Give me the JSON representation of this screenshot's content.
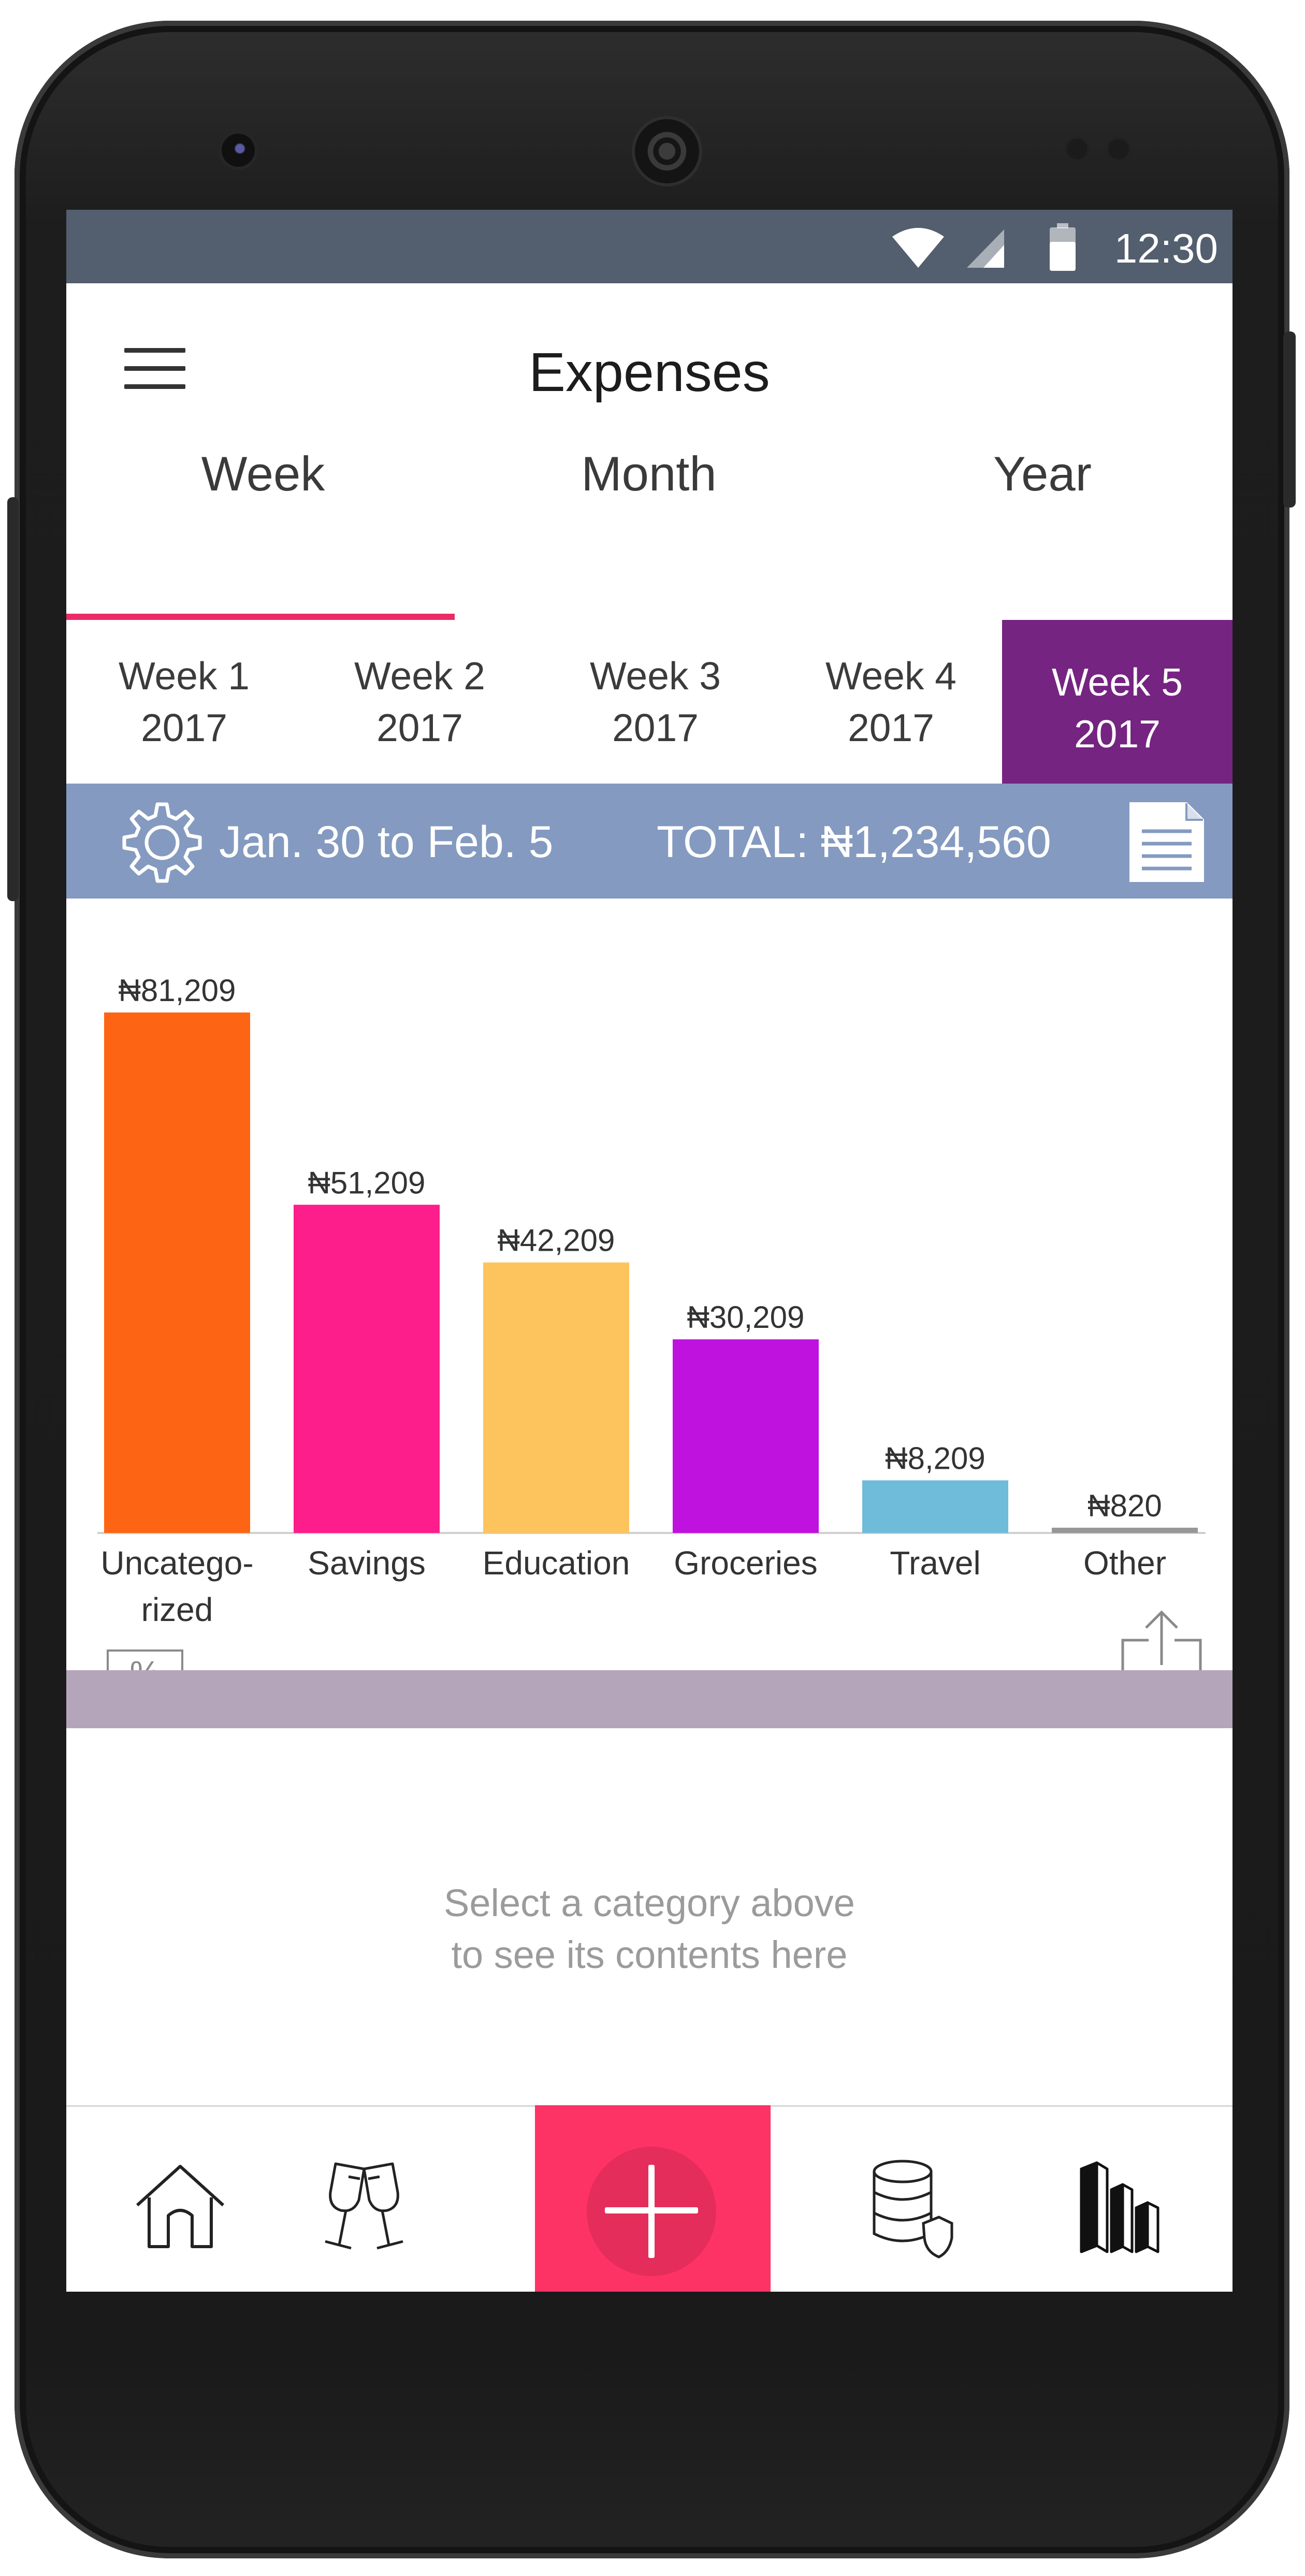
{
  "status_bar": {
    "time": "12:30"
  },
  "app_bar": {
    "title": "Expenses"
  },
  "period_tabs": [
    {
      "label": "Week",
      "selected": true
    },
    {
      "label": "Month",
      "selected": false
    },
    {
      "label": "Year",
      "selected": false
    }
  ],
  "week_selector": [
    {
      "week": "Week 1",
      "year": "2017",
      "selected": false
    },
    {
      "week": "Week 2",
      "year": "2017",
      "selected": false
    },
    {
      "week": "Week 3",
      "year": "2017",
      "selected": false
    },
    {
      "week": "Week 4",
      "year": "2017",
      "selected": false
    },
    {
      "week": "Week 5",
      "year": "2017",
      "selected": true
    }
  ],
  "summary": {
    "date_range": "Jan. 30 to Feb. 5",
    "total": "TOTAL: ₦1,234,560"
  },
  "chart_data": {
    "type": "bar",
    "categories": [
      "Uncatego-\nrized",
      "Savings",
      "Education",
      "Groceries",
      "Travel",
      "Other"
    ],
    "values": [
      81209,
      51209,
      42209,
      30209,
      8209,
      820
    ],
    "data_labels": [
      "₦81,209",
      "₦51,209",
      "₦42,209",
      "₦30,209",
      "₦8,209",
      "₦820"
    ],
    "colors": [
      "#fd6514",
      "#fd1d8b",
      "#fdc45e",
      "#bf12de",
      "#6fbbda",
      "#979797"
    ],
    "title": "",
    "xlabel": "",
    "ylabel": "",
    "grid": false
  },
  "chart_controls": {
    "percent_label": "%"
  },
  "detail_panel": {
    "line1": "Select a category above",
    "line2": "to see its contents here"
  },
  "bottom_nav": {
    "items": [
      "home-icon",
      "cheers-icon",
      "add-icon",
      "database-shield-icon",
      "bar-chart-3d-icon"
    ],
    "accent": "#fe3365"
  },
  "colors": {
    "status_bar": "#535e6e",
    "tab_indicator": "#ea2b66",
    "selected_week": "#752481",
    "summary_bar": "#849ac0",
    "divider_band": "#b5a5ba"
  }
}
